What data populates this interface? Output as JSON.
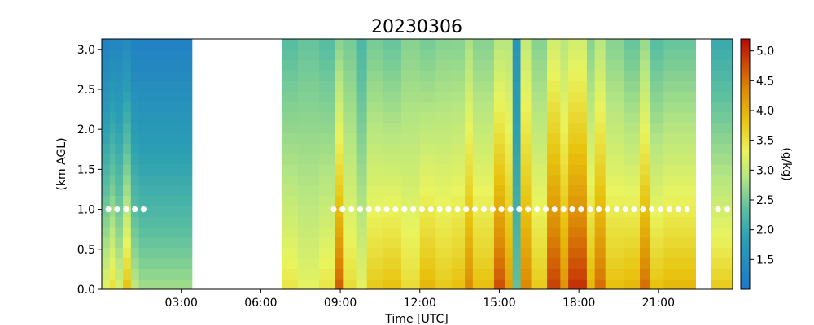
{
  "chart_data": {
    "type": "heatmap",
    "title": "20230306",
    "xlabel": "Time [UTC]",
    "ylabel": "(km AGL)",
    "colorbar_label": "(g/kg)",
    "x_units": "hours UTC",
    "xlim": [
      0,
      23.8
    ],
    "ylim": [
      0,
      3.13
    ],
    "x_ticks": [
      3,
      6,
      9,
      12,
      15,
      18,
      21
    ],
    "x_tick_labels": [
      "03:00",
      "06:00",
      "09:00",
      "12:00",
      "15:00",
      "18:00",
      "21:00"
    ],
    "y_ticks": [
      0.0,
      0.5,
      1.0,
      1.5,
      2.0,
      2.5,
      3.0
    ],
    "y_tick_labels": [
      "0.0",
      "0.5",
      "1.0",
      "1.5",
      "2.0",
      "2.5",
      "3.0"
    ],
    "colorbar_ticks": [
      1.5,
      2.0,
      2.5,
      3.0,
      3.5,
      4.0,
      4.5,
      5.0
    ],
    "colorbar_tick_labels": [
      "1.5",
      "2.0",
      "2.5",
      "3.0",
      "3.5",
      "4.0",
      "4.5",
      "5.0"
    ],
    "color_range": [
      1.0,
      5.2
    ],
    "colormap_stops": [
      {
        "v": 0.0,
        "c": "#1f77c8"
      },
      {
        "v": 0.2,
        "c": "#2b9fb4"
      },
      {
        "v": 0.32,
        "c": "#5bbfa0"
      },
      {
        "v": 0.45,
        "c": "#b6e682"
      },
      {
        "v": 0.55,
        "c": "#e9f45e"
      },
      {
        "v": 0.68,
        "c": "#e8c20e"
      },
      {
        "v": 0.8,
        "c": "#dc8a06"
      },
      {
        "v": 0.9,
        "c": "#cc4a06"
      },
      {
        "v": 1.0,
        "c": "#b40a06"
      }
    ],
    "data_gaps_hours": [
      [
        3.4,
        6.8
      ],
      [
        22.4,
        23.0
      ]
    ],
    "columns": [
      {
        "t0": 0.0,
        "t1": 0.3,
        "surf": 3.3,
        "top": 1.2
      },
      {
        "t0": 0.3,
        "t1": 0.5,
        "surf": 3.6,
        "top": 1.3
      },
      {
        "t0": 0.5,
        "t1": 0.8,
        "surf": 3.2,
        "top": 1.3
      },
      {
        "t0": 0.8,
        "t1": 1.1,
        "surf": 3.9,
        "top": 1.4
      },
      {
        "t0": 1.1,
        "t1": 1.4,
        "surf": 3.0,
        "top": 1.2
      },
      {
        "t0": 1.4,
        "t1": 3.4,
        "surf": 2.8,
        "top": 1.2
      },
      {
        "t0": 6.8,
        "t1": 7.4,
        "surf": 3.5,
        "top": 2.3
      },
      {
        "t0": 7.4,
        "t1": 8.2,
        "surf": 3.3,
        "top": 2.4
      },
      {
        "t0": 8.2,
        "t1": 8.8,
        "surf": 3.5,
        "top": 2.3
      },
      {
        "t0": 8.8,
        "t1": 9.1,
        "surf": 4.7,
        "top": 2.6
      },
      {
        "t0": 9.1,
        "t1": 9.6,
        "surf": 3.6,
        "top": 2.5
      },
      {
        "t0": 9.6,
        "t1": 10.0,
        "surf": 3.3,
        "top": 2.2
      },
      {
        "t0": 10.0,
        "t1": 10.6,
        "surf": 3.8,
        "top": 2.5
      },
      {
        "t0": 10.6,
        "t1": 11.3,
        "surf": 3.9,
        "top": 2.4
      },
      {
        "t0": 11.3,
        "t1": 12.0,
        "surf": 3.6,
        "top": 2.6
      },
      {
        "t0": 12.0,
        "t1": 12.6,
        "surf": 4.0,
        "top": 2.5
      },
      {
        "t0": 12.6,
        "t1": 13.2,
        "surf": 3.8,
        "top": 2.6
      },
      {
        "t0": 13.2,
        "t1": 13.7,
        "surf": 3.9,
        "top": 2.6
      },
      {
        "t0": 13.7,
        "t1": 14.0,
        "surf": 4.4,
        "top": 2.8
      },
      {
        "t0": 14.0,
        "t1": 14.8,
        "surf": 3.9,
        "top": 2.6
      },
      {
        "t0": 14.8,
        "t1": 15.2,
        "surf": 4.8,
        "top": 2.9
      },
      {
        "t0": 15.2,
        "t1": 15.5,
        "surf": 4.2,
        "top": 2.9
      },
      {
        "t0": 15.5,
        "t1": 15.8,
        "surf": 2.4,
        "top": 1.6
      },
      {
        "t0": 15.8,
        "t1": 16.2,
        "surf": 4.4,
        "top": 3.0
      },
      {
        "t0": 16.2,
        "t1": 16.8,
        "surf": 3.8,
        "top": 2.6
      },
      {
        "t0": 16.8,
        "t1": 17.3,
        "surf": 4.9,
        "top": 3.1
      },
      {
        "t0": 17.3,
        "t1": 17.6,
        "surf": 4.3,
        "top": 2.9
      },
      {
        "t0": 17.6,
        "t1": 18.3,
        "surf": 5.0,
        "top": 3.1
      },
      {
        "t0": 18.3,
        "t1": 18.6,
        "surf": 4.0,
        "top": 2.6
      },
      {
        "t0": 18.6,
        "t1": 19.0,
        "surf": 4.6,
        "top": 2.9
      },
      {
        "t0": 19.0,
        "t1": 19.7,
        "surf": 3.9,
        "top": 2.6
      },
      {
        "t0": 19.7,
        "t1": 20.3,
        "surf": 4.0,
        "top": 2.4
      },
      {
        "t0": 20.3,
        "t1": 20.7,
        "surf": 4.6,
        "top": 2.7
      },
      {
        "t0": 20.7,
        "t1": 21.2,
        "surf": 3.9,
        "top": 2.3
      },
      {
        "t0": 21.2,
        "t1": 22.4,
        "surf": 4.0,
        "top": 2.4
      },
      {
        "t0": 23.0,
        "t1": 23.8,
        "surf": 3.8,
        "top": 2.0
      }
    ],
    "markers": {
      "height_km": 1.0,
      "color": "#ffffff",
      "times_hours": [
        0.25,
        0.58,
        0.92,
        1.25,
        1.58,
        8.75,
        9.08,
        9.42,
        9.75,
        10.08,
        10.42,
        10.75,
        11.08,
        11.42,
        11.75,
        12.08,
        12.42,
        12.75,
        13.08,
        13.42,
        13.75,
        14.08,
        14.42,
        14.75,
        15.08,
        15.42,
        15.75,
        16.08,
        16.42,
        16.75,
        17.08,
        17.42,
        17.75,
        18.08,
        18.42,
        18.75,
        19.08,
        19.42,
        19.75,
        20.08,
        20.42,
        20.75,
        21.08,
        21.42,
        21.75,
        22.08,
        23.25,
        23.6
      ]
    }
  }
}
